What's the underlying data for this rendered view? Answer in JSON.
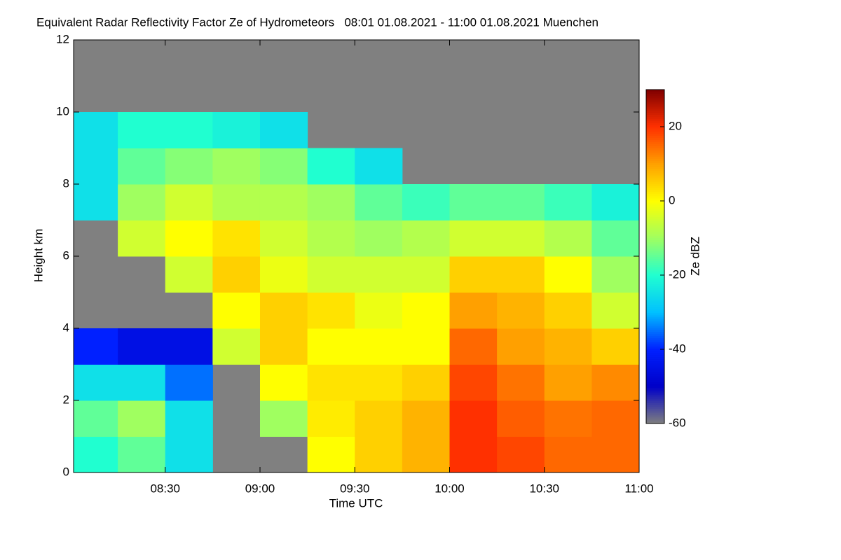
{
  "chart_data": {
    "type": "heatmap",
    "title": "Equivalent Radar Reflectivity Factor Ze of Hydrometeors   08:01 01.08.2021 - 11:00 01.08.2021 Muenchen",
    "xlabel": "Time UTC",
    "ylabel": "Height km",
    "zlabel": "Ze dBZ",
    "xlim": [
      "08:01",
      "11:00"
    ],
    "xticks": [
      "08:30",
      "09:00",
      "09:30",
      "10:00",
      "10:30",
      "11:00"
    ],
    "ylim": [
      0,
      12
    ],
    "yticks": [
      0,
      2,
      4,
      6,
      8,
      10,
      12
    ],
    "xbins": [
      "08:01",
      "08:15",
      "08:30",
      "08:45",
      "09:00",
      "09:15",
      "09:30",
      "09:45",
      "10:00",
      "10:15",
      "10:30",
      "10:45",
      "11:00"
    ],
    "ybins": [
      0,
      1,
      2,
      3,
      4,
      5,
      6,
      7,
      8,
      9,
      10,
      11,
      12
    ],
    "values": [
      [
        -20,
        -15,
        -25,
        null,
        null,
        0,
        5,
        8,
        20,
        18,
        15,
        15
      ],
      [
        -15,
        -10,
        -25,
        null,
        -10,
        2,
        5,
        8,
        20,
        16,
        14,
        15
      ],
      [
        -25,
        -25,
        -35,
        null,
        0,
        3,
        3,
        5,
        18,
        14,
        10,
        12
      ],
      [
        -40,
        -45,
        -45,
        -5,
        5,
        0,
        0,
        0,
        15,
        10,
        8,
        5
      ],
      [
        null,
        null,
        null,
        0,
        5,
        3,
        -2,
        0,
        10,
        8,
        5,
        -5
      ],
      [
        null,
        null,
        -5,
        5,
        -2,
        -5,
        -5,
        -5,
        5,
        5,
        0,
        -10
      ],
      [
        null,
        -5,
        0,
        3,
        -5,
        -8,
        -10,
        -8,
        -5,
        -5,
        -8,
        -15
      ],
      [
        -25,
        -10,
        -5,
        -8,
        -8,
        -10,
        -15,
        -18,
        -15,
        -15,
        -18,
        -22
      ],
      [
        -25,
        -15,
        -12,
        -10,
        -12,
        -20,
        -25,
        null,
        null,
        null,
        null,
        null
      ],
      [
        -25,
        -20,
        -20,
        -22,
        -25,
        null,
        null,
        null,
        null,
        null,
        null,
        null
      ],
      [
        null,
        null,
        null,
        null,
        null,
        null,
        null,
        null,
        null,
        null,
        null,
        null
      ],
      [
        null,
        null,
        null,
        null,
        null,
        null,
        null,
        null,
        null,
        null,
        null,
        null
      ]
    ],
    "zlim": [
      -60,
      30
    ],
    "zticks": [
      -60,
      -40,
      -20,
      0,
      20
    ],
    "colors": [
      "#7f7f7f",
      "#0000c8",
      "#0020ff",
      "#00c0ff",
      "#20ffd0",
      "#a0ff60",
      "#ffff00",
      "#ffa000",
      "#ff3000",
      "#800000"
    ],
    "missing_color": "#808080"
  }
}
